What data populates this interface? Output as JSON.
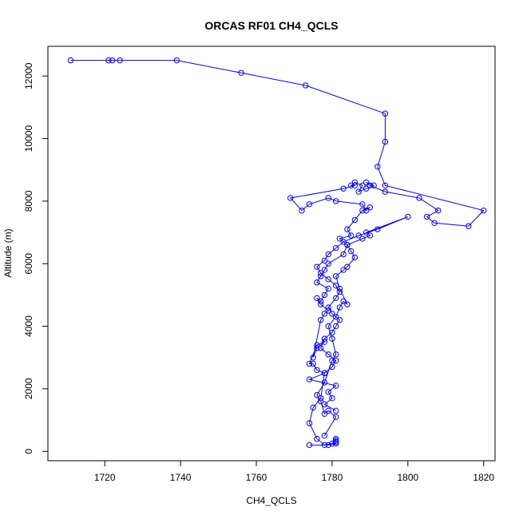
{
  "chart_data": {
    "type": "line",
    "title": "ORCAS RF01 CH4_QCLS",
    "xlabel": "CH4_QCLS",
    "ylabel": "Altitude (m)",
    "xlim": [
      1705,
      1823
    ],
    "ylim": [
      -300,
      12950
    ],
    "xticks": [
      1720,
      1740,
      1760,
      1780,
      1800,
      1820
    ],
    "yticks": [
      0,
      2000,
      4000,
      6000,
      8000,
      10000,
      12000
    ],
    "grid": false,
    "legend": "none",
    "line_color": "#0000ff",
    "marker": "open-circle",
    "series": [
      {
        "x": [
          1774,
          1779,
          1781,
          1781,
          1781,
          1781,
          1780,
          1778,
          1776,
          1774,
          1775,
          1777,
          1778,
          1776,
          1775,
          1774,
          1776,
          1778,
          1776,
          1775,
          1777,
          1778,
          1779,
          1777,
          1776,
          1777,
          1778,
          1779,
          1776,
          1777,
          1778,
          1779,
          1783,
          1784,
          1782,
          1785,
          1784,
          1786,
          1788,
          1790,
          1789,
          1788,
          1781,
          1779,
          1774,
          1772,
          1769,
          1783,
          1786,
          1785,
          1786,
          1788,
          1787,
          1789,
          1791,
          1789,
          1790,
          1794,
          1803,
          1808,
          1805,
          1807,
          1816,
          1820,
          1794,
          1792,
          1794,
          1794,
          1773,
          1756,
          1739,
          1724,
          1722,
          1721,
          1711
        ],
        "y": [
          200,
          200,
          250,
          300,
          350,
          400,
          250,
          200,
          400,
          900,
          1400,
          1700,
          2500,
          2600,
          2800,
          2800,
          3400,
          3500,
          3300,
          3000,
          4200,
          4400,
          4500,
          4700,
          4900,
          4800,
          5000,
          5200,
          5400,
          5600,
          5800,
          6000,
          6300,
          6600,
          6800,
          6900,
          7100,
          7400,
          7700,
          7800,
          7700,
          7900,
          8000,
          8100,
          7900,
          7700,
          8100,
          8400,
          8500,
          8500,
          8600,
          8500,
          8300,
          8400,
          8500,
          8600,
          8500,
          8300,
          8100,
          7700,
          7500,
          7300,
          7200,
          7700,
          8500,
          9100,
          9900,
          10800,
          11700,
          12100,
          12500,
          12500,
          12500,
          12500,
          12500
        ]
      },
      {
        "x": [
          1778,
          1781,
          1779,
          1778,
          1777,
          1776,
          1778,
          1780,
          1781,
          1780,
          1779,
          1781,
          1782,
          1783,
          1784,
          1782,
          1781,
          1783,
          1784,
          1786,
          1785,
          1784,
          1788,
          1790,
          1789,
          1800,
          1792,
          1787,
          1783,
          1781,
          1779,
          1778,
          1776,
          1777,
          1779,
          1781,
          1782,
          1781,
          1779,
          1780,
          1782,
          1781,
          1780,
          1778,
          1777,
          1779,
          1781,
          1780,
          1778,
          1774,
          1781,
          1779,
          1780,
          1778,
          1781
        ],
        "y": [
          500,
          1100,
          1300,
          1200,
          1600,
          1800,
          2200,
          2900,
          3100,
          3600,
          4000,
          4300,
          4600,
          4800,
          4700,
          5200,
          5600,
          5800,
          5900,
          6200,
          6400,
          6600,
          6800,
          6900,
          7000,
          7500,
          7100,
          6900,
          6700,
          6500,
          6300,
          6100,
          5900,
          5700,
          5500,
          5300,
          5100,
          4900,
          4600,
          4400,
          4200,
          4000,
          3800,
          3600,
          3300,
          3100,
          2900,
          2700,
          2500,
          2300,
          2100,
          1900,
          1700,
          1500,
          1300
        ]
      }
    ]
  }
}
